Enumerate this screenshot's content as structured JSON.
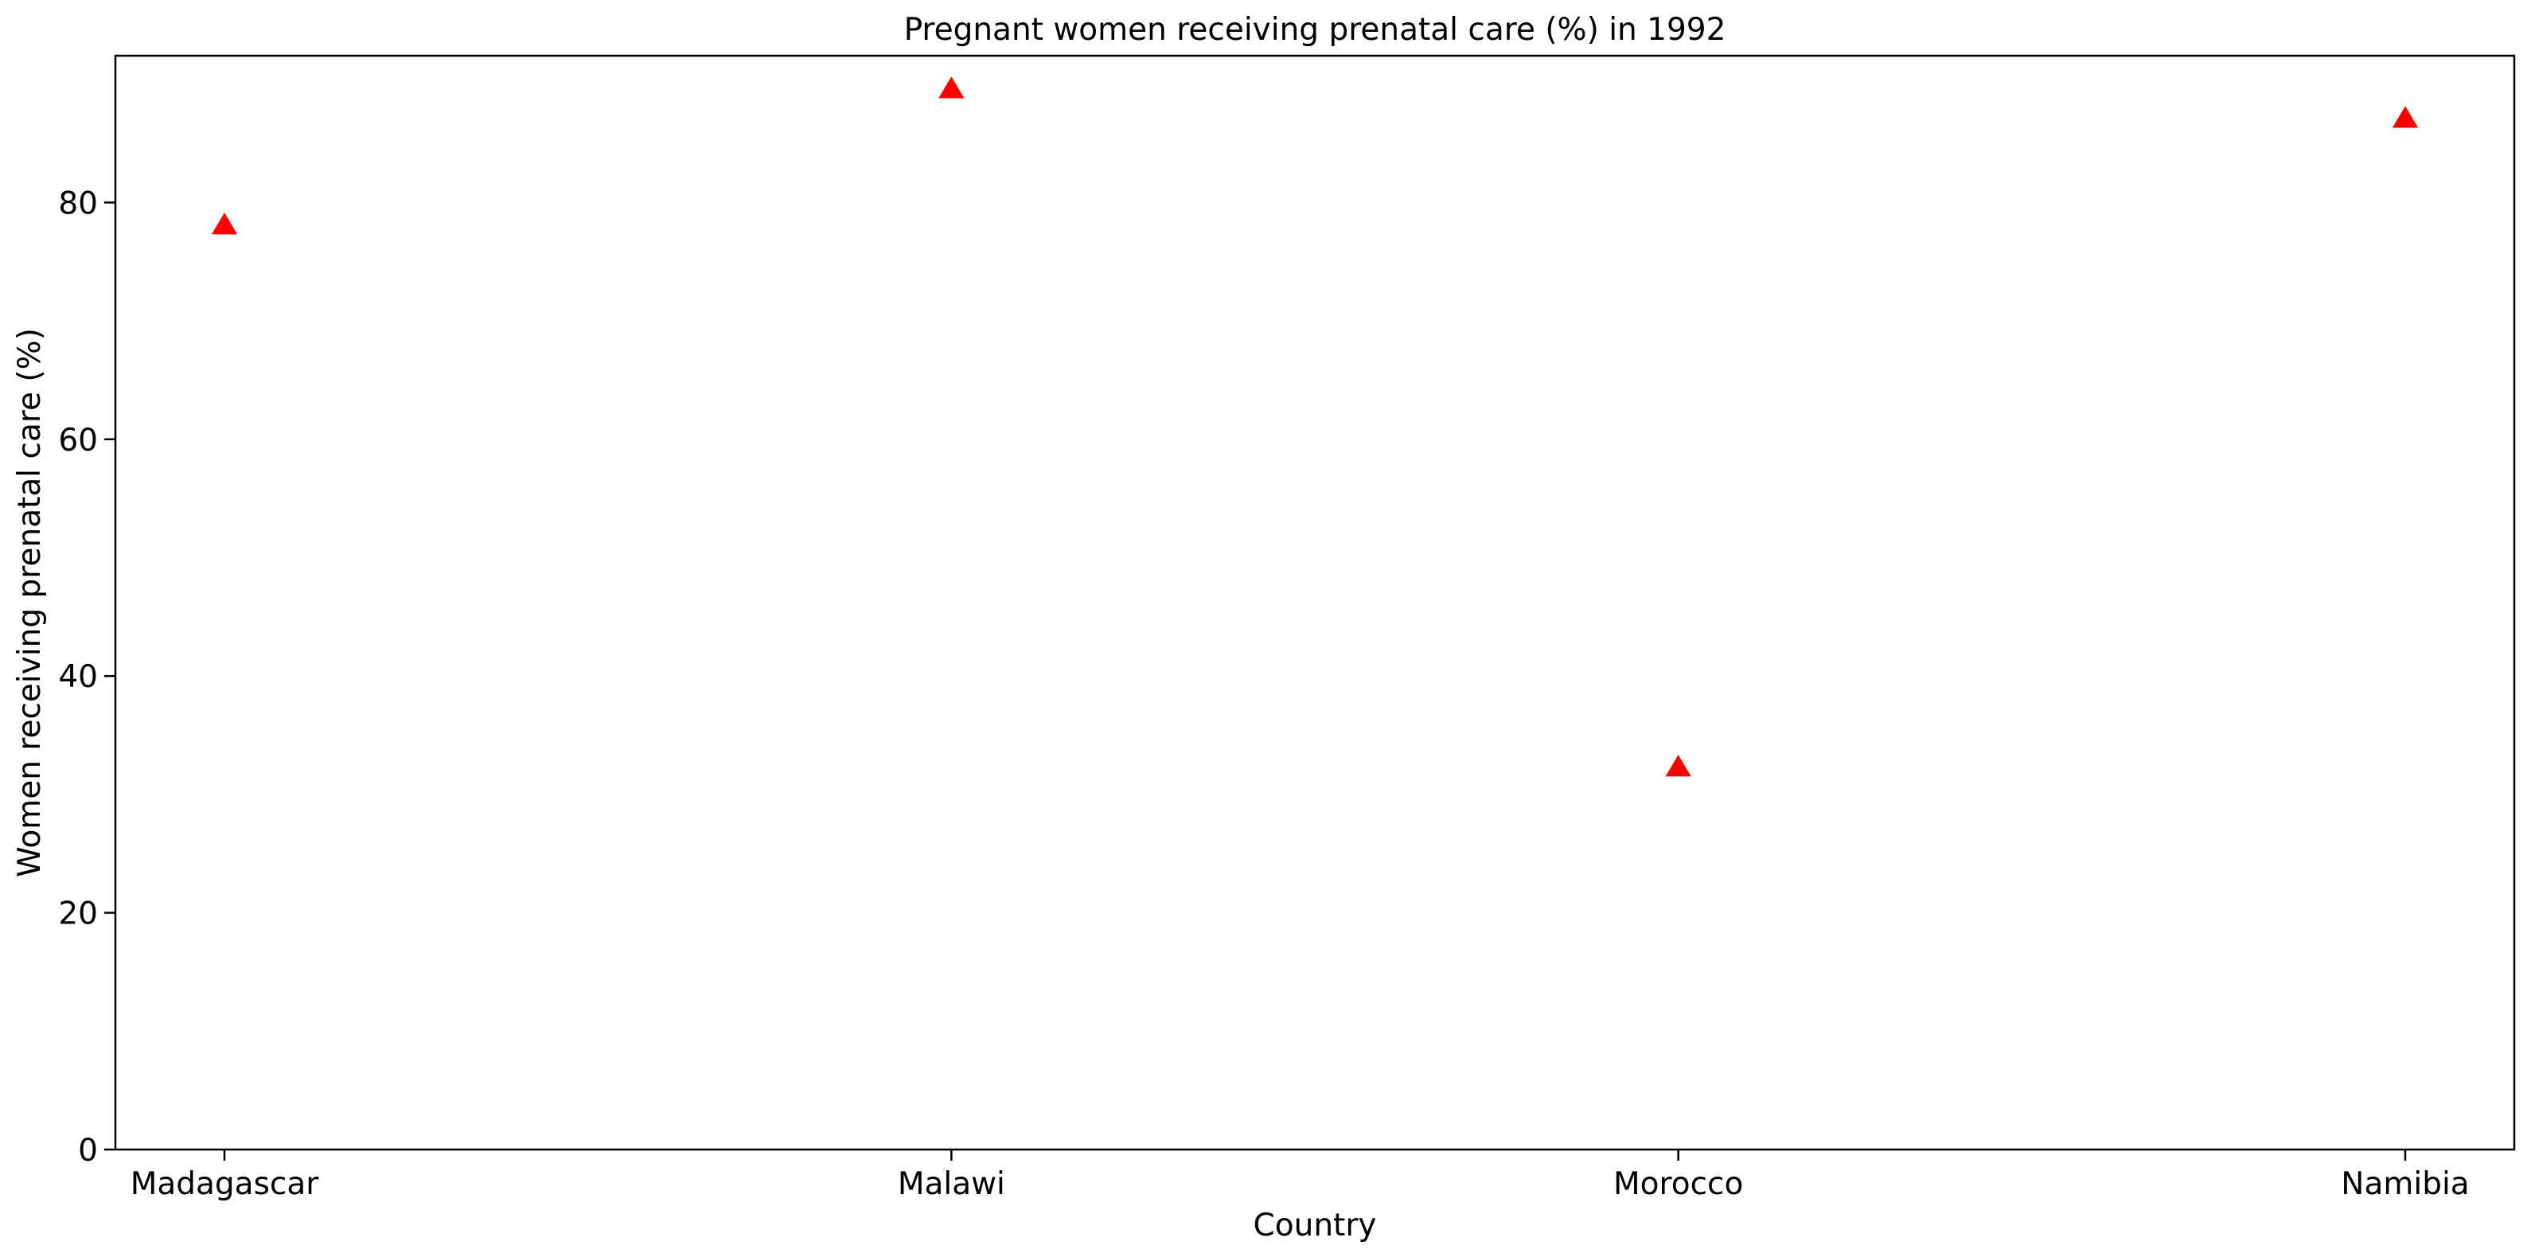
{
  "chart_data": {
    "type": "scatter",
    "title": "Pregnant women receiving prenatal care (%) in 1992",
    "xlabel": "Country",
    "ylabel": "Women receiving prenatal care (%)",
    "categories": [
      "Madagascar",
      "Malawi",
      "Morocco",
      "Namibia"
    ],
    "values": [
      78.0,
      89.5,
      32.2,
      87.0
    ],
    "ylim": [
      0,
      92.4
    ],
    "yticks": [
      0,
      20,
      40,
      60,
      80
    ],
    "marker": "triangle-up",
    "marker_color": "#ff0000",
    "grid": false,
    "legend": "none"
  }
}
